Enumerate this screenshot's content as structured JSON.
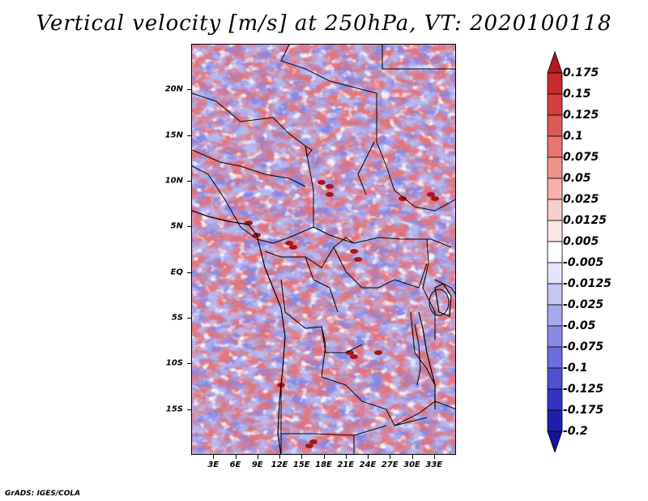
{
  "title": "Vertical velocity [m/s] at 250hPa, VT: 2020100118",
  "footer": "GrADS: IGES/COLA",
  "map": {
    "lon_range": [
      0,
      36
    ],
    "lat_range": [
      -20,
      25
    ],
    "lat_ticks": [
      {
        "value": 20,
        "label": "20N"
      },
      {
        "value": 15,
        "label": "15N"
      },
      {
        "value": 10,
        "label": "10N"
      },
      {
        "value": 5,
        "label": "5N"
      },
      {
        "value": 0,
        "label": "EQ"
      },
      {
        "value": -5,
        "label": "5S"
      },
      {
        "value": -10,
        "label": "10S"
      },
      {
        "value": -15,
        "label": "15S"
      }
    ],
    "lon_ticks": [
      {
        "value": 3,
        "label": "3E"
      },
      {
        "value": 6,
        "label": "6E"
      },
      {
        "value": 9,
        "label": "9E"
      },
      {
        "value": 12,
        "label": "12E"
      },
      {
        "value": 15,
        "label": "15E"
      },
      {
        "value": 18,
        "label": "18E"
      },
      {
        "value": 21,
        "label": "21E"
      },
      {
        "value": 24,
        "label": "24E"
      },
      {
        "value": 27,
        "label": "27E"
      },
      {
        "value": 30,
        "label": "30E"
      },
      {
        "value": 33,
        "label": "33E"
      }
    ]
  },
  "colorbar": {
    "labels": [
      "0.175",
      "0.15",
      "0.125",
      "0.1",
      "0.075",
      "0.05",
      "0.025",
      "0.0125",
      "0.005",
      "-0.005",
      "-0.0125",
      "-0.025",
      "-0.05",
      "-0.075",
      "-0.1",
      "-0.125",
      "-0.175",
      "-0.2"
    ],
    "colors": [
      "#b4191d",
      "#c62a2c",
      "#d33f3d",
      "#de5a55",
      "#e8766e",
      "#ef928a",
      "#f5b1aa",
      "#f9cdc8",
      "#fce6e3",
      "#ffffff",
      "#e4e4fb",
      "#c6c6f5",
      "#a8a8ee",
      "#8a8ae6",
      "#6d6ddd",
      "#5050d2",
      "#3232c3",
      "#1e1eae",
      "#14149a"
    ]
  }
}
